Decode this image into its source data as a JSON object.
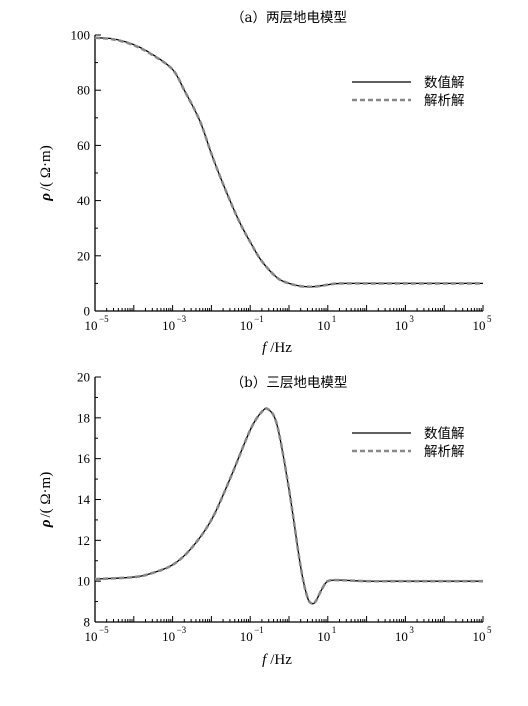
{
  "chart_data": [
    {
      "type": "line",
      "title": "（a）两层地电模型",
      "xlabel_var": "f",
      "xlabel_unit": "Hz",
      "ylabel_var": "ρ",
      "ylabel_unit": "( Ω·m)",
      "x_scale": "log",
      "xlim": [
        1e-05,
        100000.0
      ],
      "ylim": [
        0,
        100
      ],
      "y_ticks": [
        0,
        20,
        40,
        60,
        80,
        100
      ],
      "x_tick_exps": [
        -5,
        -3,
        -1,
        1,
        3,
        5
      ],
      "legend_position": "top-right",
      "series": [
        {
          "name": "数值解",
          "style": "solid",
          "color": "#000000",
          "x": [
            1e-05,
            3e-05,
            0.0001,
            0.0003,
            0.001,
            0.002,
            0.005,
            0.01,
            0.02,
            0.05,
            0.1,
            0.2,
            0.5,
            1,
            2,
            4,
            8,
            15,
            30,
            100,
            1000,
            10000,
            100000
          ],
          "y": [
            99,
            98.6,
            96.5,
            93,
            87.5,
            80,
            69,
            57,
            46,
            33,
            25,
            18,
            12,
            10,
            9,
            8.8,
            9.3,
            9.9,
            10,
            10,
            10,
            10,
            10
          ]
        },
        {
          "name": "解析解",
          "style": "dashed",
          "color": "#888888",
          "x": [
            1e-05,
            3e-05,
            0.0001,
            0.0003,
            0.001,
            0.002,
            0.005,
            0.01,
            0.02,
            0.05,
            0.1,
            0.2,
            0.5,
            1,
            2,
            4,
            8,
            15,
            30,
            100,
            1000,
            10000,
            100000
          ],
          "y": [
            99,
            98.4,
            96.3,
            92.8,
            87.5,
            80,
            69,
            57,
            46,
            33,
            25,
            18,
            12,
            10,
            9,
            8.8,
            9.3,
            9.9,
            10,
            10,
            10,
            10,
            10
          ]
        }
      ]
    },
    {
      "type": "line",
      "title": "（b）三层地电模型",
      "xlabel_var": "f",
      "xlabel_unit": "Hz",
      "ylabel_var": "ρ",
      "ylabel_unit": "( Ω·m)",
      "x_scale": "log",
      "xlim": [
        1e-05,
        100000.0
      ],
      "ylim": [
        8,
        20
      ],
      "y_ticks": [
        8,
        10,
        12,
        14,
        16,
        18,
        20
      ],
      "x_tick_exps": [
        -5,
        -3,
        -1,
        1,
        3,
        5
      ],
      "legend_position": "top-right",
      "series": [
        {
          "name": "数值解",
          "style": "solid",
          "color": "#000000",
          "x": [
            1e-05,
            0.0001,
            0.0003,
            0.001,
            0.003,
            0.01,
            0.03,
            0.1,
            0.2,
            0.3,
            0.5,
            1,
            2,
            3,
            4,
            5,
            7,
            10,
            20,
            100,
            1000,
            10000,
            100000
          ],
          "y": [
            10.1,
            10.2,
            10.4,
            10.8,
            11.6,
            13,
            15,
            17.4,
            18.3,
            18.4,
            17.6,
            14.5,
            10.7,
            9.2,
            8.9,
            9.05,
            9.6,
            10,
            10.05,
            10,
            10,
            10,
            10
          ]
        },
        {
          "name": "解析解",
          "style": "dashed",
          "color": "#888888",
          "x": [
            1e-05,
            0.0001,
            0.0003,
            0.001,
            0.003,
            0.01,
            0.03,
            0.1,
            0.2,
            0.3,
            0.5,
            1,
            2,
            3,
            4,
            5,
            7,
            10,
            20,
            100,
            1000,
            10000,
            100000
          ],
          "y": [
            10.1,
            10.2,
            10.4,
            10.8,
            11.6,
            13,
            15,
            17.4,
            18.3,
            18.4,
            17.6,
            14.5,
            10.7,
            9.2,
            8.9,
            9.05,
            9.6,
            10,
            10.05,
            10,
            10,
            10,
            10
          ]
        }
      ]
    }
  ]
}
